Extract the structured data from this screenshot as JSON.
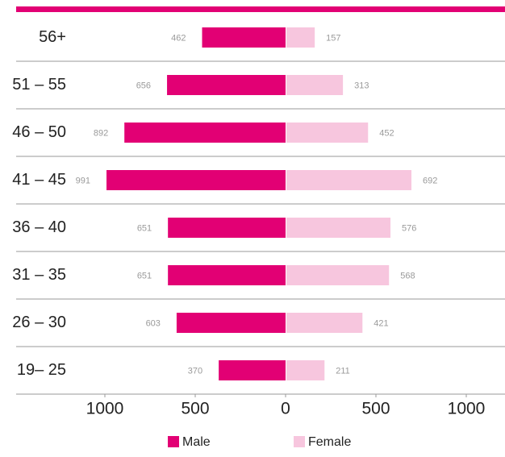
{
  "chart_data": {
    "type": "pyramid",
    "categories": [
      "56+",
      "51 – 55",
      "46 – 50",
      "41 – 45",
      "36 – 40",
      "31 – 35",
      "26 – 30",
      "19– 25"
    ],
    "series": [
      {
        "name": "Male",
        "color": "#e20074",
        "side": "left",
        "values": [
          462,
          656,
          892,
          991,
          651,
          651,
          603,
          370
        ]
      },
      {
        "name": "Female",
        "color": "#f7c6de",
        "side": "right",
        "values": [
          157,
          313,
          452,
          692,
          576,
          568,
          421,
          211
        ]
      }
    ],
    "xlim": [
      -1000,
      1000
    ],
    "xticks": [
      {
        "value": -1000,
        "label": "1000"
      },
      {
        "value": -500,
        "label": "500"
      },
      0,
      500,
      {
        "value": 1000,
        "label": "1000"
      }
    ],
    "accent_color": "#e20074"
  }
}
